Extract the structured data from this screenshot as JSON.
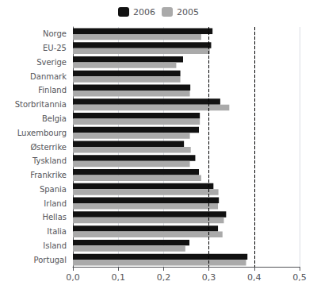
{
  "chart_data": {
    "type": "bar",
    "orientation": "horizontal",
    "categories": [
      "Norge",
      "EU-25",
      "Sverige",
      "Danmark",
      "Finland",
      "Storbritannia",
      "Belgia",
      "Luxembourg",
      "Østerrike",
      "Tyskland",
      "Frankrike",
      "Spania",
      "Irland",
      "Hellas",
      "Italia",
      "Island",
      "Portugal"
    ],
    "series": [
      {
        "name": "2006",
        "color": "#111111",
        "values": [
          0.308,
          0.305,
          0.243,
          0.237,
          0.259,
          0.325,
          0.28,
          0.278,
          0.245,
          0.27,
          0.278,
          0.31,
          0.322,
          0.338,
          0.32,
          0.257,
          0.385
        ]
      },
      {
        "name": "2005",
        "color": "#aaaaaa",
        "values": [
          0.283,
          0.302,
          0.228,
          0.237,
          0.258,
          0.345,
          0.28,
          0.258,
          0.26,
          0.258,
          0.283,
          0.321,
          0.32,
          0.333,
          0.33,
          0.248,
          0.382
        ]
      }
    ],
    "xlim": [
      0,
      0.5
    ],
    "xticks": [
      {
        "value": 0.0,
        "label": "0,0"
      },
      {
        "value": 0.1,
        "label": "0,1"
      },
      {
        "value": 0.2,
        "label": "0,2"
      },
      {
        "value": 0.3,
        "label": "0,3"
      },
      {
        "value": 0.4,
        "label": "0,4"
      },
      {
        "value": 0.5,
        "label": "0,5"
      }
    ],
    "vlines": [
      0.3,
      0.4
    ],
    "grid": true,
    "legend": "top"
  }
}
